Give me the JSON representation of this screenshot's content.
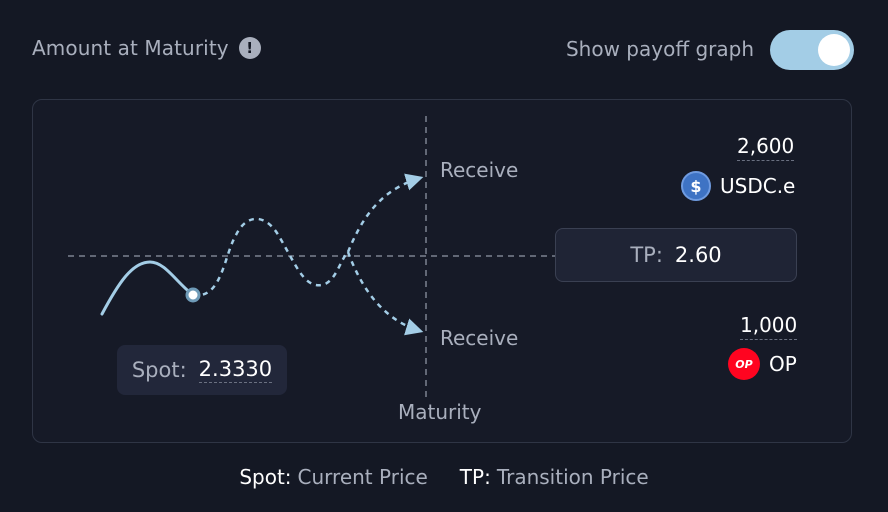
{
  "header": {
    "title": "Amount at Maturity",
    "info_glyph": "!",
    "toggle_label": "Show payoff graph",
    "toggle_on": true
  },
  "graph": {
    "receive_top_label": "Receive",
    "receive_bottom_label": "Receive",
    "maturity_label": "Maturity",
    "upper_amount": "2,600",
    "upper_token": "USDC.e",
    "lower_amount": "1,000",
    "lower_token": "OP",
    "tp_key": "TP:",
    "tp_value": "2.60",
    "spot_key": "Spot:",
    "spot_value": "2.3330"
  },
  "legend": {
    "spot_key": "Spot:",
    "spot_desc": "Current Price",
    "tp_key": "TP:",
    "tp_desc": "Transition Price"
  },
  "icons": {
    "info": "info-icon",
    "usdc": "usdc-icon",
    "op": "op-icon",
    "op_glyph": "OP",
    "usdc_glyph": "$"
  },
  "colors": {
    "accent": "#a3cde6",
    "background": "#141824",
    "op_red": "#ff0420",
    "usdc_blue": "#3e73c4"
  }
}
